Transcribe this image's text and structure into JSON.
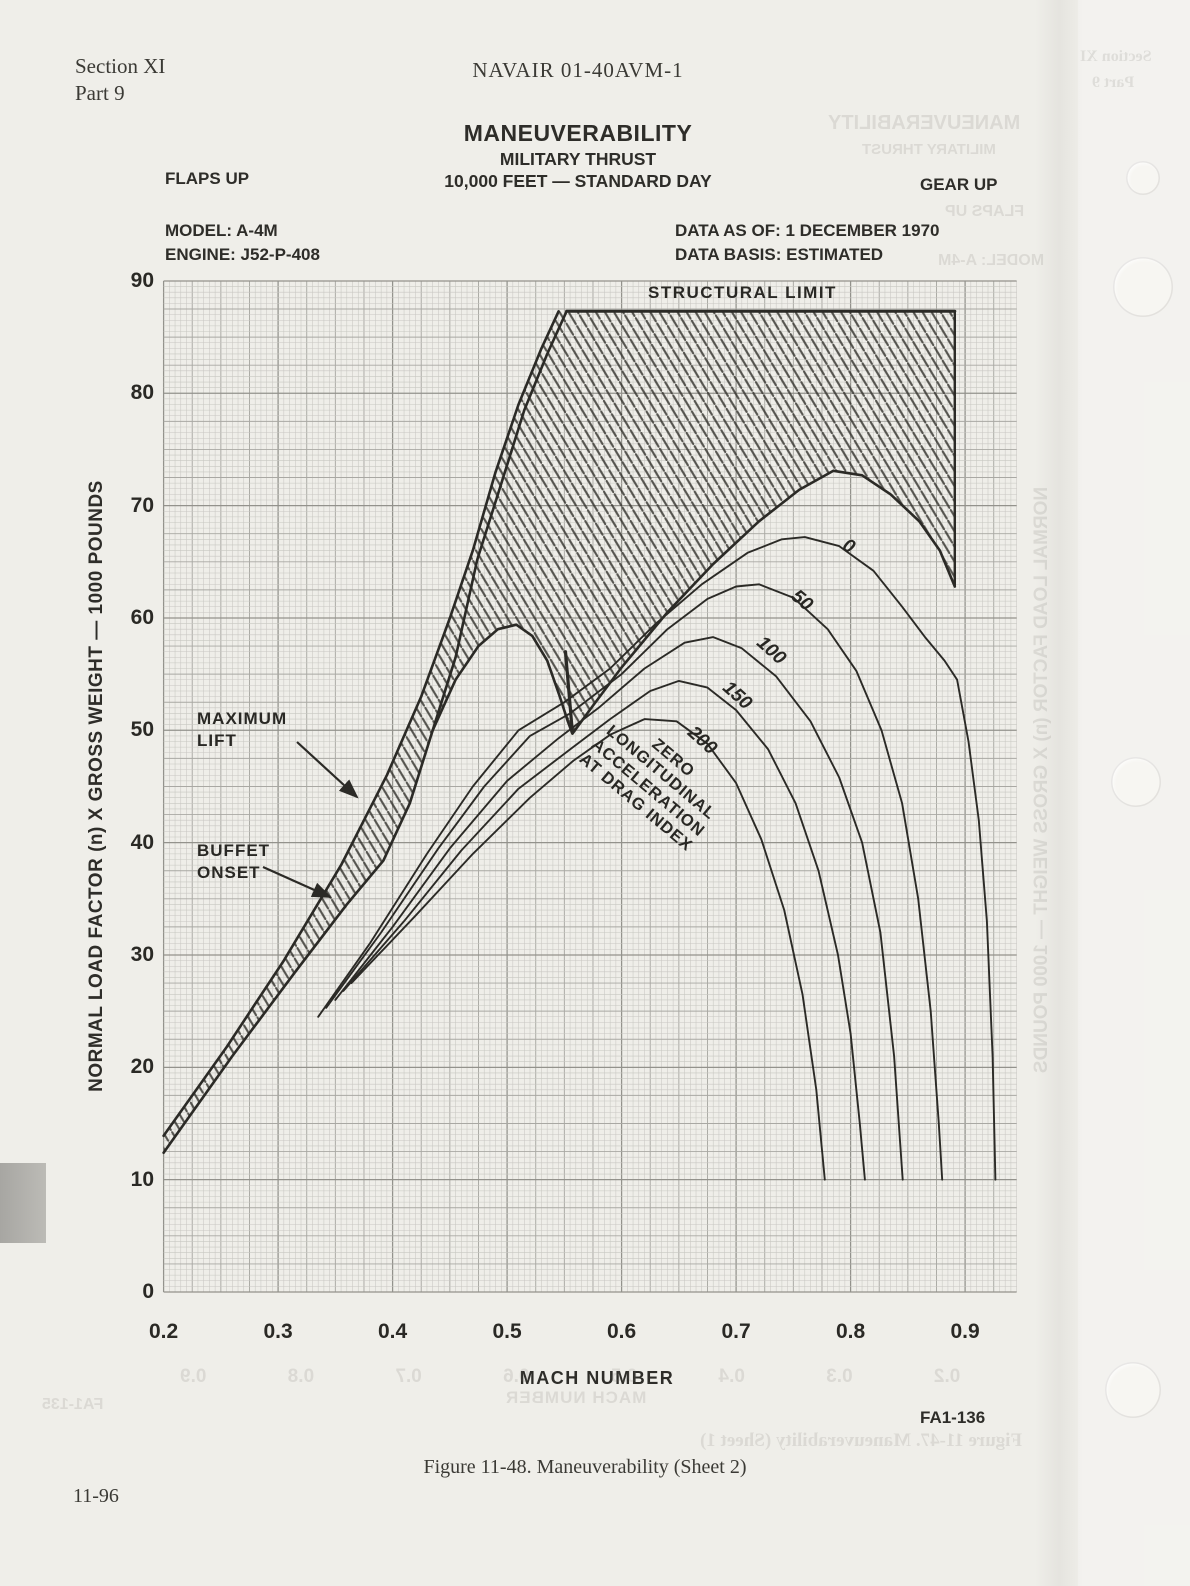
{
  "page": {
    "header_left1": "Section XI",
    "header_left2": "Part 9",
    "header_center": "NAVAIR 01-40AVM-1",
    "figure_code": "FA1-136",
    "figure_caption": "Figure 11-48.  Maneuverability (Sheet 2)",
    "footer_page": "11-96"
  },
  "title_block": {
    "title": "MANEUVERABILITY",
    "subtitle1": "MILITARY THRUST",
    "subtitle2": "10,000 FEET — STANDARD DAY",
    "left_condition": "FLAPS UP",
    "right_condition": "GEAR UP",
    "model": "MODEL: A-4M",
    "engine": "ENGINE: J52-P-408",
    "data_as_of": "DATA AS OF: 1 DECEMBER 1970",
    "data_basis": "DATA BASIS: ESTIMATED"
  },
  "annotations": {
    "structural_limit": "STRUCTURAL LIMIT",
    "maximum_lift_line1": "MAXIMUM",
    "maximum_lift_line2": "LIFT",
    "buffet_line1": "BUFFET",
    "buffet_line2": "ONSET",
    "zero_accel": {
      "lines": [
        "ZERO",
        "LONGITUDINAL",
        "ACCELERATION",
        "AT DRAG INDEX"
      ]
    }
  },
  "chart_data": {
    "type": "line",
    "title": "MANEUVERABILITY — MILITARY THRUST — 10,000 FEET — STANDARD DAY",
    "xlabel": "MACH NUMBER",
    "ylabel": "NORMAL LOAD FACTOR (n) X GROSS WEIGHT — 1000 POUNDS",
    "xlim": [
      0.2,
      0.945
    ],
    "ylim": [
      0,
      90
    ],
    "x_ticks": [
      0.2,
      0.3,
      0.4,
      0.5,
      0.6,
      0.7,
      0.8,
      0.9
    ],
    "y_ticks": [
      0,
      10,
      20,
      30,
      40,
      50,
      60,
      70,
      80,
      90
    ],
    "grid": "fine graph paper, minor 0.005 mach / 0.5 units, accented every 5th line",
    "structural_limit_load": 87.3,
    "envelope_region": {
      "style": "diagonal-hatched region between maximum lift / buffet onset boundaries and structural limit",
      "points": [
        [
          0.2,
          13.9
        ],
        [
          0.255,
          21.8
        ],
        [
          0.305,
          29.5
        ],
        [
          0.355,
          38
        ],
        [
          0.395,
          46
        ],
        [
          0.425,
          53
        ],
        [
          0.45,
          60
        ],
        [
          0.47,
          66
        ],
        [
          0.49,
          73
        ],
        [
          0.51,
          79
        ],
        [
          0.53,
          84
        ],
        [
          0.545,
          87.3
        ],
        [
          0.891,
          87.3
        ],
        [
          0.891,
          62.8
        ],
        [
          0.878,
          66
        ],
        [
          0.86,
          68.6
        ],
        [
          0.835,
          71
        ],
        [
          0.81,
          72.7
        ],
        [
          0.785,
          73.1
        ],
        [
          0.755,
          71.4
        ],
        [
          0.72,
          68.6
        ],
        [
          0.68,
          64.8
        ],
        [
          0.64,
          60.5
        ],
        [
          0.6,
          55.6
        ],
        [
          0.575,
          52.2
        ],
        [
          0.557,
          49.7
        ],
        [
          0.553,
          50.8
        ],
        [
          0.546,
          53
        ],
        [
          0.535,
          56.2
        ],
        [
          0.522,
          58.4
        ],
        [
          0.508,
          59.4
        ],
        [
          0.492,
          59
        ],
        [
          0.475,
          57.5
        ],
        [
          0.455,
          54.5
        ],
        [
          0.435,
          50
        ],
        [
          0.415,
          43.5
        ],
        [
          0.392,
          38.4
        ],
        [
          0.315,
          28.5
        ],
        [
          0.26,
          21
        ],
        [
          0.2,
          12.4
        ]
      ]
    },
    "series": [
      {
        "name": "structural-limit",
        "points": [
          [
            0.552,
            87.3
          ],
          [
            0.891,
            87.3
          ]
        ]
      },
      {
        "name": "envelope-right-edge",
        "points": [
          [
            0.891,
            87.3
          ],
          [
            0.891,
            62.8
          ]
        ]
      },
      {
        "name": "maximum-lift",
        "points": [
          [
            0.2,
            13.9
          ],
          [
            0.255,
            21.8
          ],
          [
            0.305,
            29.5
          ],
          [
            0.355,
            38
          ],
          [
            0.395,
            46
          ],
          [
            0.425,
            53
          ],
          [
            0.45,
            60
          ],
          [
            0.47,
            66
          ],
          [
            0.49,
            73
          ],
          [
            0.51,
            79
          ],
          [
            0.53,
            84
          ],
          [
            0.545,
            87.3
          ]
        ]
      },
      {
        "name": "buffet-onset-band",
        "points": [
          [
            0.2,
            12.4
          ],
          [
            0.26,
            21
          ],
          [
            0.315,
            28.5
          ],
          [
            0.36,
            34.5
          ],
          [
            0.392,
            38.4
          ],
          [
            0.415,
            43.5
          ],
          [
            0.435,
            50
          ],
          [
            0.455,
            56.5
          ],
          [
            0.474,
            65.2
          ],
          [
            0.495,
            72
          ],
          [
            0.515,
            78.5
          ],
          [
            0.535,
            83.5
          ],
          [
            0.552,
            87.3
          ]
        ]
      },
      {
        "name": "buffet-onset-transonic",
        "points": [
          [
            0.435,
            50
          ],
          [
            0.455,
            54.5
          ],
          [
            0.475,
            57.5
          ],
          [
            0.492,
            59
          ],
          [
            0.508,
            59.4
          ],
          [
            0.522,
            58.4
          ],
          [
            0.535,
            56.2
          ],
          [
            0.546,
            53
          ],
          [
            0.553,
            50.8
          ],
          [
            0.557,
            49.7
          ],
          [
            0.575,
            52.2
          ],
          [
            0.6,
            55.6
          ],
          [
            0.64,
            60.5
          ],
          [
            0.68,
            64.8
          ],
          [
            0.72,
            68.6
          ],
          [
            0.755,
            71.4
          ],
          [
            0.785,
            73.1
          ],
          [
            0.81,
            72.7
          ],
          [
            0.835,
            71
          ],
          [
            0.86,
            68.6
          ],
          [
            0.878,
            66
          ],
          [
            0.891,
            62.8
          ]
        ]
      },
      {
        "name": "cusp-notch",
        "points": [
          [
            0.551,
            57
          ],
          [
            0.557,
            49.8
          ]
        ]
      },
      {
        "name": "drag-index-0",
        "label": "0",
        "points": [
          [
            0.335,
            24.5
          ],
          [
            0.38,
            31
          ],
          [
            0.43,
            39
          ],
          [
            0.47,
            45
          ],
          [
            0.51,
            50
          ],
          [
            0.55,
            52.5
          ],
          [
            0.59,
            55.5
          ],
          [
            0.63,
            59.5
          ],
          [
            0.67,
            63
          ],
          [
            0.71,
            65.8
          ],
          [
            0.74,
            67
          ],
          [
            0.76,
            67.2
          ],
          [
            0.79,
            66.4
          ],
          [
            0.82,
            64.2
          ],
          [
            0.845,
            61
          ],
          [
            0.865,
            58.3
          ],
          [
            0.882,
            56.2
          ],
          [
            0.893,
            54.5
          ],
          [
            0.903,
            49
          ],
          [
            0.912,
            42
          ],
          [
            0.919,
            33
          ],
          [
            0.924,
            21
          ],
          [
            0.9265,
            10
          ]
        ]
      },
      {
        "name": "drag-index-50",
        "label": "50",
        "points": [
          [
            0.342,
            25.3
          ],
          [
            0.39,
            32
          ],
          [
            0.44,
            39.5
          ],
          [
            0.48,
            45
          ],
          [
            0.52,
            49.5
          ],
          [
            0.555,
            51.5
          ],
          [
            0.6,
            55
          ],
          [
            0.64,
            59
          ],
          [
            0.675,
            61.7
          ],
          [
            0.7,
            62.8
          ],
          [
            0.72,
            63
          ],
          [
            0.75,
            61.8
          ],
          [
            0.78,
            59
          ],
          [
            0.805,
            55.3
          ],
          [
            0.827,
            50
          ],
          [
            0.845,
            43.5
          ],
          [
            0.859,
            35
          ],
          [
            0.87,
            25
          ],
          [
            0.877,
            15
          ],
          [
            0.88,
            10
          ]
        ]
      },
      {
        "name": "drag-index-100",
        "label": "100",
        "points": [
          [
            0.35,
            26
          ],
          [
            0.4,
            32.5
          ],
          [
            0.45,
            39.5
          ],
          [
            0.5,
            45.5
          ],
          [
            0.545,
            49.3
          ],
          [
            0.58,
            52
          ],
          [
            0.62,
            55.5
          ],
          [
            0.655,
            57.8
          ],
          [
            0.68,
            58.3
          ],
          [
            0.705,
            57.3
          ],
          [
            0.735,
            54.8
          ],
          [
            0.765,
            50.8
          ],
          [
            0.79,
            45.8
          ],
          [
            0.81,
            40
          ],
          [
            0.826,
            32
          ],
          [
            0.838,
            21
          ],
          [
            0.8455,
            10
          ]
        ]
      },
      {
        "name": "drag-index-150",
        "label": "150",
        "points": [
          [
            0.357,
            26.8
          ],
          [
            0.41,
            33
          ],
          [
            0.46,
            39.3
          ],
          [
            0.51,
            44.8
          ],
          [
            0.555,
            48.3
          ],
          [
            0.59,
            51
          ],
          [
            0.625,
            53.5
          ],
          [
            0.65,
            54.4
          ],
          [
            0.675,
            53.8
          ],
          [
            0.7,
            51.8
          ],
          [
            0.728,
            48.3
          ],
          [
            0.752,
            43.5
          ],
          [
            0.772,
            37.5
          ],
          [
            0.789,
            30
          ],
          [
            0.8,
            23
          ],
          [
            0.808,
            15
          ],
          [
            0.8125,
            10
          ]
        ]
      },
      {
        "name": "drag-index-200",
        "label": "200",
        "points": [
          [
            0.364,
            27.5
          ],
          [
            0.42,
            33.5
          ],
          [
            0.47,
            39
          ],
          [
            0.52,
            44
          ],
          [
            0.558,
            47.3
          ],
          [
            0.59,
            49.6
          ],
          [
            0.62,
            51
          ],
          [
            0.648,
            50.8
          ],
          [
            0.675,
            48.8
          ],
          [
            0.7,
            45.3
          ],
          [
            0.722,
            40.3
          ],
          [
            0.742,
            34
          ],
          [
            0.758,
            26.5
          ],
          [
            0.77,
            18
          ],
          [
            0.7775,
            10
          ]
        ]
      }
    ]
  },
  "bleed_through": {
    "note": "faint mirrored print-through from reverse page",
    "texts": [
      "Section XI",
      "Part 9",
      "MANEUVERABILITY",
      "MILITARY THRUST",
      "FLAPS UP",
      "MODEL: A-4M",
      "NORMAL LOAD FACTOR (n) X GROSS WEIGHT — 1000 POUNDS",
      "0.2   0.3   0.4   0.5   0.6   0.7   0.8   0.9",
      "MACH NUMBER",
      "FA1-135",
      "Figure 11-47.  Maneuverability (Sheet 1)"
    ]
  },
  "artifacts": {
    "punch_holes": 4,
    "left_tab": "gray index tab on left edge",
    "colors": {
      "paper": "#efeee9",
      "ink": "#2b2a26",
      "grid_minor": "#c8c7c2",
      "grid_accent": "#a5a49f"
    }
  }
}
